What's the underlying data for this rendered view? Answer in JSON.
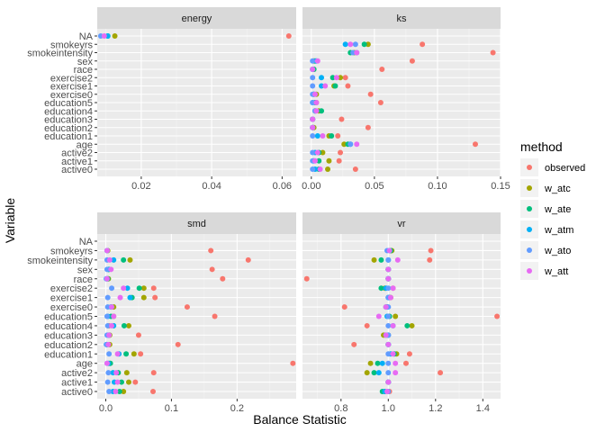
{
  "chart_data": {
    "type": "scatter",
    "xlabel": "Balance Statistic",
    "ylabel": "Variable",
    "legend": {
      "title": "method",
      "placement": "right",
      "entries": [
        {
          "name": "observed",
          "color": "#F8766D"
        },
        {
          "name": "w_atc",
          "color": "#A3A500"
        },
        {
          "name": "w_ate",
          "color": "#00BF7D"
        },
        {
          "name": "w_atm",
          "color": "#00B0F6"
        },
        {
          "name": "w_ato",
          "color": "#619CFF"
        },
        {
          "name": "w_att",
          "color": "#E76BF3"
        }
      ]
    },
    "variables": [
      "NA",
      "smokeyrs",
      "smokeintensity",
      "sex",
      "race",
      "exercise2",
      "exercise1",
      "exercise0",
      "education5",
      "education4",
      "education3",
      "education2",
      "education1",
      "age",
      "active2",
      "active1",
      "active0"
    ],
    "methods": [
      "observed",
      "w_atc",
      "w_ate",
      "w_atm",
      "w_ato",
      "w_att"
    ],
    "panel_background": "#EBEBEB",
    "strip_background": "#D9D9D9",
    "panels": [
      {
        "name": "energy",
        "xlim": [
          0.0075,
          0.064
        ],
        "xticks": [
          0.02,
          0.04,
          0.06
        ],
        "xtick_labels": [
          "0.02",
          "0.04",
          "0.06"
        ],
        "points": [
          {
            "variable": "NA",
            "values": [
              0.0619,
              0.0125,
              0.0105,
              0.0105,
              0.0085,
              0.0095
            ]
          }
        ]
      },
      {
        "name": "ks",
        "xlim": [
          -0.007,
          0.15
        ],
        "xticks": [
          0.0,
          0.05,
          0.1,
          0.15
        ],
        "xtick_labels": [
          "0.00",
          "0.05",
          "0.10",
          "0.15"
        ],
        "points": [
          {
            "variable": "smokeyrs",
            "values": [
              0.088,
              0.045,
              0.042,
              0.027,
              0.035,
              0.031
            ]
          },
          {
            "variable": "smokeintensity",
            "values": [
              0.144,
              0.034,
              0.031,
              0.036,
              0.033,
              0.036
            ]
          },
          {
            "variable": "sex",
            "values": [
              0.08,
              0.002,
              0.003,
              0.004,
              0.001,
              0.005
            ]
          },
          {
            "variable": "race",
            "values": [
              0.056,
              0.002,
              0.002,
              0.001,
              0.001,
              0.001
            ]
          },
          {
            "variable": "exercise2",
            "values": [
              0.027,
              0.023,
              0.017,
              0.008,
              0.001,
              0.02
            ]
          },
          {
            "variable": "exercise1",
            "values": [
              0.029,
              0.018,
              0.019,
              0.008,
              0.001,
              0.011
            ]
          },
          {
            "variable": "exercise0",
            "values": [
              0.047,
              0.004,
              0.002,
              0.002,
              0.001,
              0.003
            ]
          },
          {
            "variable": "education5",
            "values": [
              0.055,
              0.004,
              0.003,
              0.001,
              0.001,
              0.004
            ]
          },
          {
            "variable": "education4",
            "values": [
              0.003,
              0.006,
              0.008,
              0.003,
              0.003,
              0.004
            ]
          },
          {
            "variable": "education3",
            "values": [
              0.024,
              0.001,
              0.001,
              0.001,
              0.001,
              0.001
            ]
          },
          {
            "variable": "education2",
            "values": [
              0.045,
              0.002,
              0.001,
              0.001,
              0.001,
              0.001
            ]
          },
          {
            "variable": "education1",
            "values": [
              0.021,
              0.014,
              0.016,
              0.005,
              0.001,
              0.009
            ]
          },
          {
            "variable": "age",
            "values": [
              0.13,
              0.026,
              0.029,
              0.031,
              0.031,
              0.036
            ]
          },
          {
            "variable": "active2",
            "values": [
              0.023,
              0.009,
              0.006,
              0.003,
              0.001,
              0.005
            ]
          },
          {
            "variable": "active1",
            "values": [
              0.022,
              0.014,
              0.006,
              0.002,
              0.001,
              0.003
            ]
          },
          {
            "variable": "active0",
            "values": [
              0.035,
              0.013,
              0.006,
              0.003,
              0.001,
              0.007
            ]
          }
        ]
      },
      {
        "name": "smd",
        "xlim": [
          -0.013,
          0.29
        ],
        "xticks": [
          0.0,
          0.1,
          0.2
        ],
        "xtick_labels": [
          "0.0",
          "0.1",
          "0.2"
        ],
        "points": [
          {
            "variable": "smokeyrs",
            "values": [
              0.16,
              0.003,
              0.002,
              0.002,
              0.002,
              0.002
            ]
          },
          {
            "variable": "smokeintensity",
            "values": [
              0.217,
              0.037,
              0.027,
              0.012,
              0.002,
              0.006
            ]
          },
          {
            "variable": "sex",
            "values": [
              0.162,
              0.004,
              0.005,
              0.004,
              0.002,
              0.008
            ]
          },
          {
            "variable": "race",
            "values": [
              0.178,
              0.004,
              0.003,
              0.001,
              0.001,
              0.002
            ]
          },
          {
            "variable": "exercise2",
            "values": [
              0.073,
              0.058,
              0.051,
              0.033,
              0.009,
              0.027
            ]
          },
          {
            "variable": "exercise1",
            "values": [
              0.075,
              0.058,
              0.04,
              0.037,
              0.003,
              0.022
            ]
          },
          {
            "variable": "exercise0",
            "values": [
              0.124,
              0.012,
              0.009,
              0.008,
              0.003,
              0.009
            ]
          },
          {
            "variable": "education5",
            "values": [
              0.166,
              0.012,
              0.008,
              0.003,
              0.002,
              0.012
            ]
          },
          {
            "variable": "education4",
            "values": [
              0.005,
              0.035,
              0.028,
              0.012,
              0.003,
              0.009
            ]
          },
          {
            "variable": "education3",
            "values": [
              0.05,
              0.006,
              0.005,
              0.004,
              0.002,
              0.005
            ]
          },
          {
            "variable": "education2",
            "values": [
              0.11,
              0.006,
              0.002,
              0.001,
              0.001,
              0.004
            ]
          },
          {
            "variable": "education1",
            "values": [
              0.053,
              0.043,
              0.031,
              0.02,
              0.005,
              0.018
            ]
          },
          {
            "variable": "age",
            "values": [
              0.285,
              0.006,
              0.007,
              0.004,
              0.002,
              0.002
            ]
          },
          {
            "variable": "active2",
            "values": [
              0.073,
              0.032,
              0.019,
              0.011,
              0.004,
              0.016
            ]
          },
          {
            "variable": "active1",
            "values": [
              0.045,
              0.035,
              0.024,
              0.013,
              0.003,
              0.018
            ]
          },
          {
            "variable": "active0",
            "values": [
              0.072,
              0.027,
              0.021,
              0.011,
              0.005,
              0.015
            ]
          }
        ]
      },
      {
        "name": "vr",
        "xlim": [
          0.637,
          1.475
        ],
        "xticks": [
          0.8,
          1.0,
          1.2,
          1.4
        ],
        "xtick_labels": [
          "0.8",
          "1.0",
          "1.2",
          "1.4"
        ],
        "points": [
          {
            "variable": "smokeyrs",
            "values": [
              1.18,
              1.015,
              1.01,
              1.005,
              0.995,
              1.005
            ]
          },
          {
            "variable": "smokeintensity",
            "values": [
              1.175,
              0.94,
              0.97,
              1.0,
              1.0,
              1.04
            ]
          },
          {
            "variable": "sex",
            "values": [
              1.0,
              1.0,
              1.0,
              1.0,
              1.0,
              1.0
            ]
          },
          {
            "variable": "race",
            "values": [
              0.655,
              1.0,
              1.0,
              1.0,
              1.0,
              1.0
            ]
          },
          {
            "variable": "exercise2",
            "values": [
              1.02,
              0.985,
              0.97,
              0.99,
              1.0,
              1.02
            ]
          },
          {
            "variable": "exercise1",
            "values": [
              1.0,
              1.01,
              1.005,
              1.0,
              1.0,
              1.01
            ]
          },
          {
            "variable": "exercise0",
            "values": [
              0.815,
              0.995,
              0.99,
              0.995,
              1.0,
              0.99
            ]
          },
          {
            "variable": "education5",
            "values": [
              1.46,
              1.03,
              1.005,
              0.995,
              1.0,
              0.96
            ]
          },
          {
            "variable": "education4",
            "values": [
              0.91,
              1.1,
              1.08,
              1.02,
              1.0,
              1.02
            ]
          },
          {
            "variable": "education3",
            "values": [
              1.0,
              0.98,
              0.99,
              1.0,
              1.0,
              0.99
            ]
          },
          {
            "variable": "education2",
            "values": [
              0.855,
              1.0,
              1.0,
              1.0,
              1.0,
              1.0
            ]
          },
          {
            "variable": "education1",
            "values": [
              1.09,
              1.035,
              1.025,
              1.01,
              1.0,
              1.02
            ]
          },
          {
            "variable": "age",
            "values": [
              1.075,
              0.925,
              0.955,
              0.975,
              1.0,
              1.03
            ]
          },
          {
            "variable": "active2",
            "values": [
              1.22,
              0.91,
              0.94,
              0.96,
              1.0,
              1.03
            ]
          },
          {
            "variable": "active1",
            "values": [
              1.0,
              1.0,
              1.0,
              1.0,
              1.0,
              1.0
            ]
          },
          {
            "variable": "active0",
            "values": [
              1.005,
              0.985,
              0.975,
              0.985,
              1.0,
              0.995
            ]
          }
        ]
      }
    ]
  }
}
